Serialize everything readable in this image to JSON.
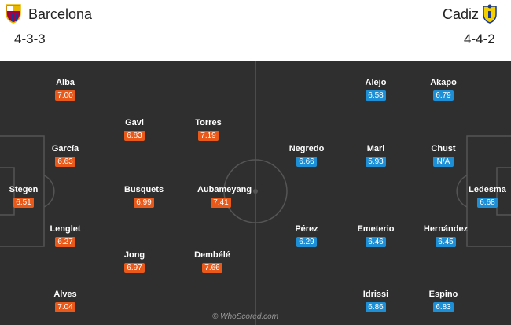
{
  "home": {
    "name": "Barcelona",
    "formation": "4-3-3",
    "players": [
      {
        "name": "Alba",
        "rating": "7.00"
      },
      {
        "name": "Gavi",
        "rating": "6.83"
      },
      {
        "name": "Torres",
        "rating": "7.19"
      },
      {
        "name": "García",
        "rating": "6.63"
      },
      {
        "name": "Stegen",
        "rating": "6.51"
      },
      {
        "name": "Busquets",
        "rating": "6.99"
      },
      {
        "name": "Aubameyang",
        "rating": "7.41"
      },
      {
        "name": "Lenglet",
        "rating": "6.27"
      },
      {
        "name": "Jong",
        "rating": "6.97"
      },
      {
        "name": "Dembélé",
        "rating": "7.66"
      },
      {
        "name": "Alves",
        "rating": "7.04"
      }
    ]
  },
  "away": {
    "name": "Cadiz",
    "formation": "4-4-2",
    "players": [
      {
        "name": "Alejo",
        "rating": "6.58"
      },
      {
        "name": "Akapo",
        "rating": "6.79"
      },
      {
        "name": "Negredo",
        "rating": "6.66"
      },
      {
        "name": "Mari",
        "rating": "5.93"
      },
      {
        "name": "Chust",
        "rating": "N/A"
      },
      {
        "name": "Ledesma",
        "rating": "6.68"
      },
      {
        "name": "Pérez",
        "rating": "6.29"
      },
      {
        "name": "Emeterio",
        "rating": "6.46"
      },
      {
        "name": "Hernández",
        "rating": "6.45"
      },
      {
        "name": "Idrissi",
        "rating": "6.86"
      },
      {
        "name": "Espino",
        "rating": "6.83"
      }
    ]
  },
  "colors": {
    "home_rating": "#e8591a",
    "away_rating": "#1d8fd6",
    "pitch": "#2f2f2f",
    "lines": "#555555"
  },
  "watermark": "© WhoScored.com"
}
